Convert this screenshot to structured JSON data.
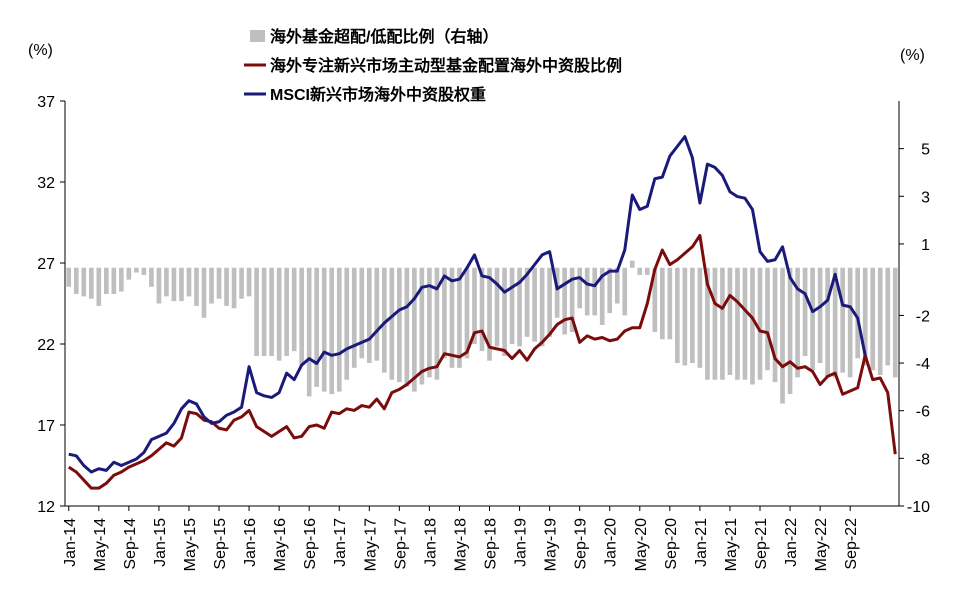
{
  "chart_data": {
    "type": "bar+line",
    "legend": [
      {
        "label": "海外基金超配/低配比例（右轴）",
        "kind": "bar",
        "color": "#bfbfbf"
      },
      {
        "label": "海外专注新兴市场主动型基金配置海外中资股比例",
        "kind": "line",
        "color": "#7b0c0c"
      },
      {
        "label": "MSCI新兴市场海外中资股权重",
        "kind": "line",
        "color": "#1a1a7a"
      }
    ],
    "left_unit": "(%)",
    "right_unit": "(%)",
    "left_axis": {
      "min": 12,
      "max": 37,
      "ticks": [
        "37",
        "32",
        "27",
        "22",
        "17",
        "12"
      ]
    },
    "right_axis": {
      "min": -10,
      "max": 7,
      "ticks": [
        "5",
        "3",
        "1",
        "-2",
        "-4",
        "-6",
        "-8",
        "-10"
      ],
      "tick_values": [
        5,
        3,
        1,
        -2,
        -4,
        -6,
        -8,
        -10
      ]
    },
    "x_ticks": [
      "Jan-14",
      "May-14",
      "Sep-14",
      "Jan-15",
      "May-15",
      "Sep-15",
      "Jan-16",
      "May-16",
      "Sep-16",
      "Jan-17",
      "May-17",
      "Sep-17",
      "Jan-18",
      "May-18",
      "Sep-18",
      "Jan-19",
      "May-19",
      "Sep-19",
      "Jan-20",
      "May-20",
      "Sep-20",
      "Jan-21",
      "May-21",
      "Sep-21",
      "Jan-22",
      "May-22",
      "Sep-22"
    ],
    "months_start": "2014-01",
    "series": [
      {
        "name": "海外专注新兴市场主动型基金配置海外中资股比例",
        "axis": "left",
        "values": [
          14.4,
          14.1,
          13.6,
          13.1,
          13.1,
          13.4,
          13.9,
          14.1,
          14.4,
          14.6,
          14.8,
          15.1,
          15.5,
          15.9,
          15.7,
          16.2,
          17.8,
          17.7,
          17.3,
          17.2,
          16.8,
          16.7,
          17.3,
          17.5,
          17.9,
          16.9,
          16.6,
          16.3,
          16.6,
          16.9,
          16.2,
          16.3,
          16.9,
          17.0,
          16.8,
          17.8,
          17.7,
          18.0,
          17.9,
          18.2,
          18.1,
          18.6,
          18.0,
          19.0,
          19.2,
          19.5,
          19.9,
          20.3,
          20.5,
          20.6,
          21.4,
          21.3,
          21.2,
          21.5,
          22.7,
          22.8,
          21.8,
          21.7,
          21.6,
          21.1,
          21.6,
          21.0,
          21.7,
          22.1,
          22.6,
          23.2,
          23.5,
          23.6,
          22.1,
          22.5,
          22.3,
          22.4,
          22.2,
          22.3,
          22.8,
          23.0,
          23.0,
          24.5,
          26.6,
          27.8,
          26.9,
          27.2,
          27.6,
          28.0,
          28.7,
          25.7,
          24.5,
          24.2,
          25.0,
          24.6,
          24.1,
          23.6,
          22.8,
          22.7,
          21.1,
          20.6,
          20.9,
          20.5,
          20.6,
          20.3,
          19.5,
          20.0,
          20.2,
          18.9,
          19.1,
          19.3,
          21.3,
          19.8,
          19.9,
          19.0,
          15.2
        ]
      },
      {
        "name": "MSCI新兴市场海外中资股权重",
        "axis": "left",
        "values": [
          15.2,
          15.1,
          14.5,
          14.1,
          14.3,
          14.2,
          14.7,
          14.5,
          14.7,
          14.9,
          15.3,
          16.1,
          16.3,
          16.5,
          17.1,
          18.0,
          18.5,
          18.3,
          17.5,
          17.1,
          17.2,
          17.6,
          17.8,
          18.1,
          20.6,
          19.0,
          18.8,
          18.7,
          19.0,
          20.2,
          19.8,
          20.7,
          21.1,
          20.8,
          21.5,
          21.3,
          21.4,
          21.7,
          21.9,
          22.1,
          22.3,
          22.8,
          23.3,
          23.7,
          24.1,
          24.3,
          24.8,
          25.5,
          25.6,
          25.4,
          26.2,
          25.9,
          26.0,
          26.7,
          27.5,
          26.2,
          26.1,
          25.7,
          25.2,
          25.5,
          25.8,
          26.3,
          26.9,
          27.5,
          27.7,
          25.4,
          25.7,
          26.0,
          26.1,
          25.7,
          25.6,
          26.2,
          26.5,
          26.5,
          27.8,
          31.2,
          30.3,
          30.5,
          32.2,
          32.3,
          33.6,
          34.2,
          34.8,
          33.5,
          30.7,
          33.1,
          32.9,
          32.4,
          31.4,
          31.1,
          31.0,
          30.3,
          27.7,
          27.1,
          27.2,
          28.0,
          26.1,
          25.4,
          25.1,
          24.0,
          24.3,
          24.7,
          26.3,
          24.4,
          24.3,
          23.6,
          21.3
        ]
      },
      {
        "name": "海外基金超配/低配比例（右轴）",
        "axis": "right",
        "values": [
          -0.8,
          -1.1,
          -1.2,
          -1.3,
          -1.6,
          -1.1,
          -1.1,
          -1.0,
          -0.5,
          -0.2,
          -0.3,
          -0.8,
          -1.5,
          -1.2,
          -1.4,
          -1.4,
          -1.2,
          -1.6,
          -2.1,
          -1.5,
          -1.3,
          -1.6,
          -1.7,
          -1.3,
          -1.2,
          -3.7,
          -3.7,
          -3.7,
          -3.9,
          -3.7,
          -3.5,
          -4.1,
          -5.4,
          -5.0,
          -5.2,
          -5.3,
          -5.2,
          -4.7,
          -4.2,
          -3.8,
          -4.0,
          -3.9,
          -4.4,
          -4.7,
          -4.8,
          -5.0,
          -5.2,
          -4.9,
          -4.6,
          -4.7,
          -3.8,
          -4.2,
          -4.2,
          -3.8,
          -3.2,
          -3.5,
          -3.9,
          -3.3,
          -3.7,
          -3.2,
          -3.3,
          -2.9,
          -3.1,
          -3.3,
          -2.9,
          -2.1,
          -2.8,
          -2.7,
          -1.7,
          -2.0,
          -2.0,
          -2.4,
          -1.9,
          -1.5,
          -2.0,
          0.3,
          -0.3,
          -0.3,
          -2.7,
          -3.0,
          -3.0,
          -4.0,
          -4.1,
          -4.0,
          -4.2,
          -4.7,
          -4.7,
          -4.7,
          -4.5,
          -4.7,
          -4.7,
          -4.9,
          -4.7,
          -4.3,
          -4.8,
          -5.7,
          -5.3,
          -4.6,
          -3.7,
          -4.3,
          -4.0,
          -4.6,
          -4.6,
          -4.4,
          -4.6,
          -3.8,
          -4.1,
          -4.3,
          -4.5,
          -4.1,
          -4.6
        ]
      }
    ]
  }
}
